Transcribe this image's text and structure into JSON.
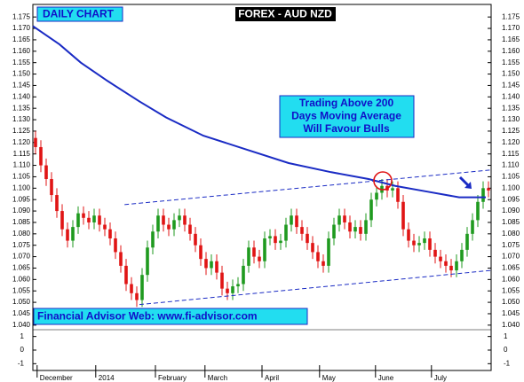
{
  "chart_data": {
    "type": "candlestick",
    "title": "FOREX - AUD NZD",
    "subtitle": "DAILY CHART",
    "annotation": [
      "Trading Above 200",
      "Days Moving Average",
      "Will Favour Bulls"
    ],
    "footer": "Financial Advisor Web: www.fi-advisor.com",
    "up_color": "#1f9a1f",
    "down_color": "#e01414",
    "open": [
      1.122,
      1.118,
      1.11,
      1.104,
      1.097,
      1.09,
      1.082,
      1.077,
      1.083,
      1.089,
      1.087,
      1.085,
      1.088,
      1.084,
      1.082,
      1.078,
      1.072,
      1.066,
      1.058,
      1.054,
      1.051,
      1.062,
      1.074,
      1.081,
      1.088,
      1.084,
      1.082,
      1.086,
      1.088,
      1.084,
      1.08,
      1.075,
      1.069,
      1.065,
      1.068,
      1.063,
      1.056,
      1.054,
      1.057,
      1.058,
      1.066,
      1.074,
      1.07,
      1.068,
      1.078,
      1.079,
      1.076,
      1.077,
      1.084,
      1.088,
      1.083,
      1.08,
      1.076,
      1.072,
      1.068,
      1.066,
      1.078,
      1.084,
      1.088,
      1.085,
      1.081,
      1.083,
      1.08,
      1.086,
      1.095,
      1.098,
      1.101,
      1.099,
      1.1,
      1.094,
      1.082,
      1.077,
      1.075,
      1.076,
      1.078,
      1.073,
      1.07,
      1.068,
      1.066,
      1.064,
      1.068,
      1.073,
      1.08,
      1.086,
      1.094,
      1.1
    ],
    "high": [
      1.125,
      1.121,
      1.113,
      1.107,
      1.1,
      1.093,
      1.085,
      1.086,
      1.092,
      1.092,
      1.09,
      1.091,
      1.091,
      1.087,
      1.085,
      1.081,
      1.075,
      1.069,
      1.061,
      1.057,
      1.065,
      1.077,
      1.084,
      1.091,
      1.091,
      1.087,
      1.089,
      1.091,
      1.091,
      1.087,
      1.083,
      1.078,
      1.072,
      1.071,
      1.071,
      1.066,
      1.059,
      1.06,
      1.061,
      1.069,
      1.077,
      1.077,
      1.073,
      1.081,
      1.082,
      1.082,
      1.08,
      1.087,
      1.091,
      1.091,
      1.086,
      1.083,
      1.079,
      1.075,
      1.071,
      1.081,
      1.087,
      1.091,
      1.091,
      1.088,
      1.086,
      1.086,
      1.089,
      1.098,
      1.101,
      1.104,
      1.104,
      1.103,
      1.103,
      1.097,
      1.085,
      1.08,
      1.079,
      1.081,
      1.081,
      1.076,
      1.073,
      1.071,
      1.069,
      1.071,
      1.076,
      1.083,
      1.089,
      1.097,
      1.103,
      1.103
    ],
    "low": [
      1.115,
      1.107,
      1.101,
      1.094,
      1.087,
      1.079,
      1.074,
      1.074,
      1.08,
      1.084,
      1.082,
      1.082,
      1.081,
      1.079,
      1.075,
      1.069,
      1.063,
      1.055,
      1.051,
      1.048,
      1.048,
      1.059,
      1.071,
      1.078,
      1.081,
      1.079,
      1.079,
      1.083,
      1.081,
      1.077,
      1.072,
      1.066,
      1.062,
      1.062,
      1.06,
      1.053,
      1.051,
      1.051,
      1.054,
      1.055,
      1.063,
      1.067,
      1.065,
      1.065,
      1.075,
      1.073,
      1.073,
      1.074,
      1.081,
      1.08,
      1.077,
      1.073,
      1.069,
      1.065,
      1.063,
      1.063,
      1.075,
      1.081,
      1.082,
      1.078,
      1.078,
      1.077,
      1.077,
      1.083,
      1.092,
      1.095,
      1.096,
      1.096,
      1.091,
      1.079,
      1.074,
      1.072,
      1.072,
      1.073,
      1.07,
      1.067,
      1.065,
      1.063,
      1.061,
      1.061,
      1.065,
      1.07,
      1.077,
      1.083,
      1.091,
      1.096
    ],
    "close": [
      1.118,
      1.11,
      1.104,
      1.097,
      1.09,
      1.082,
      1.077,
      1.083,
      1.089,
      1.087,
      1.085,
      1.088,
      1.084,
      1.082,
      1.078,
      1.072,
      1.066,
      1.058,
      1.054,
      1.051,
      1.062,
      1.074,
      1.081,
      1.088,
      1.084,
      1.082,
      1.086,
      1.088,
      1.084,
      1.08,
      1.075,
      1.069,
      1.065,
      1.068,
      1.063,
      1.056,
      1.054,
      1.057,
      1.058,
      1.066,
      1.074,
      1.07,
      1.068,
      1.078,
      1.079,
      1.076,
      1.077,
      1.084,
      1.088,
      1.083,
      1.08,
      1.076,
      1.072,
      1.068,
      1.066,
      1.078,
      1.084,
      1.088,
      1.085,
      1.081,
      1.083,
      1.08,
      1.086,
      1.095,
      1.098,
      1.101,
      1.099,
      1.1,
      1.094,
      1.082,
      1.077,
      1.075,
      1.076,
      1.078,
      1.073,
      1.07,
      1.068,
      1.066,
      1.064,
      1.068,
      1.073,
      1.08,
      1.086,
      1.094,
      1.1,
      1.099
    ],
    "moving_average": {
      "color": "#1a2bc4",
      "x": [
        0,
        5,
        9,
        14,
        20,
        25,
        32,
        40,
        48,
        56,
        63,
        68,
        74,
        80,
        85
      ],
      "values": [
        1.171,
        1.163,
        1.155,
        1.147,
        1.138,
        1.131,
        1.123,
        1.117,
        1.111,
        1.107,
        1.104,
        1.101,
        1.0985,
        1.096,
        1.096
      ]
    },
    "trendlines": [
      {
        "color": "#1a2bc4",
        "x": [
          17.2,
          86
        ],
        "y": [
          1.0928,
          1.108
        ]
      },
      {
        "color": "#1a2bc4",
        "x": [
          20,
          86
        ],
        "y": [
          1.049,
          1.064
        ]
      }
    ],
    "xlim": [
      0,
      86
    ],
    "xticks": [
      {
        "value": 0.8,
        "label": "December"
      },
      {
        "value": 11.8,
        "label": "2014"
      },
      {
        "value": 23,
        "label": "February"
      },
      {
        "value": 32.3,
        "label": "March"
      },
      {
        "value": 43,
        "label": "April"
      },
      {
        "value": 53.8,
        "label": "May"
      },
      {
        "value": 64.3,
        "label": "June"
      },
      {
        "value": 74.8,
        "label": "July"
      }
    ],
    "ylim": [
      1.038,
      1.1805
    ],
    "yticks": [
      {
        "value": 1.04,
        "label": "1.040"
      },
      {
        "value": 1.045,
        "label": "1.045"
      },
      {
        "value": 1.05,
        "label": "1.050"
      },
      {
        "value": 1.055,
        "label": "1.055"
      },
      {
        "value": 1.06,
        "label": "1.060"
      },
      {
        "value": 1.065,
        "label": "1.065"
      },
      {
        "value": 1.07,
        "label": "1.070"
      },
      {
        "value": 1.075,
        "label": "1.075"
      },
      {
        "value": 1.08,
        "label": "1.080"
      },
      {
        "value": 1.085,
        "label": "1.085"
      },
      {
        "value": 1.09,
        "label": "1.090"
      },
      {
        "value": 1.095,
        "label": "1.095"
      },
      {
        "value": 1.1,
        "label": "1.100"
      },
      {
        "value": 1.105,
        "label": "1.105"
      },
      {
        "value": 1.11,
        "label": "1.110"
      },
      {
        "value": 1.115,
        "label": "1.115"
      },
      {
        "value": 1.12,
        "label": "1.120"
      },
      {
        "value": 1.125,
        "label": "1.125"
      },
      {
        "value": 1.13,
        "label": "1.130"
      },
      {
        "value": 1.135,
        "label": "1.135"
      },
      {
        "value": 1.14,
        "label": "1.140"
      },
      {
        "value": 1.145,
        "label": "1.145"
      },
      {
        "value": 1.15,
        "label": "1.150"
      },
      {
        "value": 1.155,
        "label": "1.155"
      },
      {
        "value": 1.16,
        "label": "1.160"
      },
      {
        "value": 1.165,
        "label": "1.165"
      },
      {
        "value": 1.17,
        "label": "1.170"
      },
      {
        "value": 1.175,
        "label": "1.175"
      }
    ],
    "y2lim": [
      -1.5,
      1.5
    ],
    "y2ticks": [
      1,
      0,
      -1
    ]
  }
}
